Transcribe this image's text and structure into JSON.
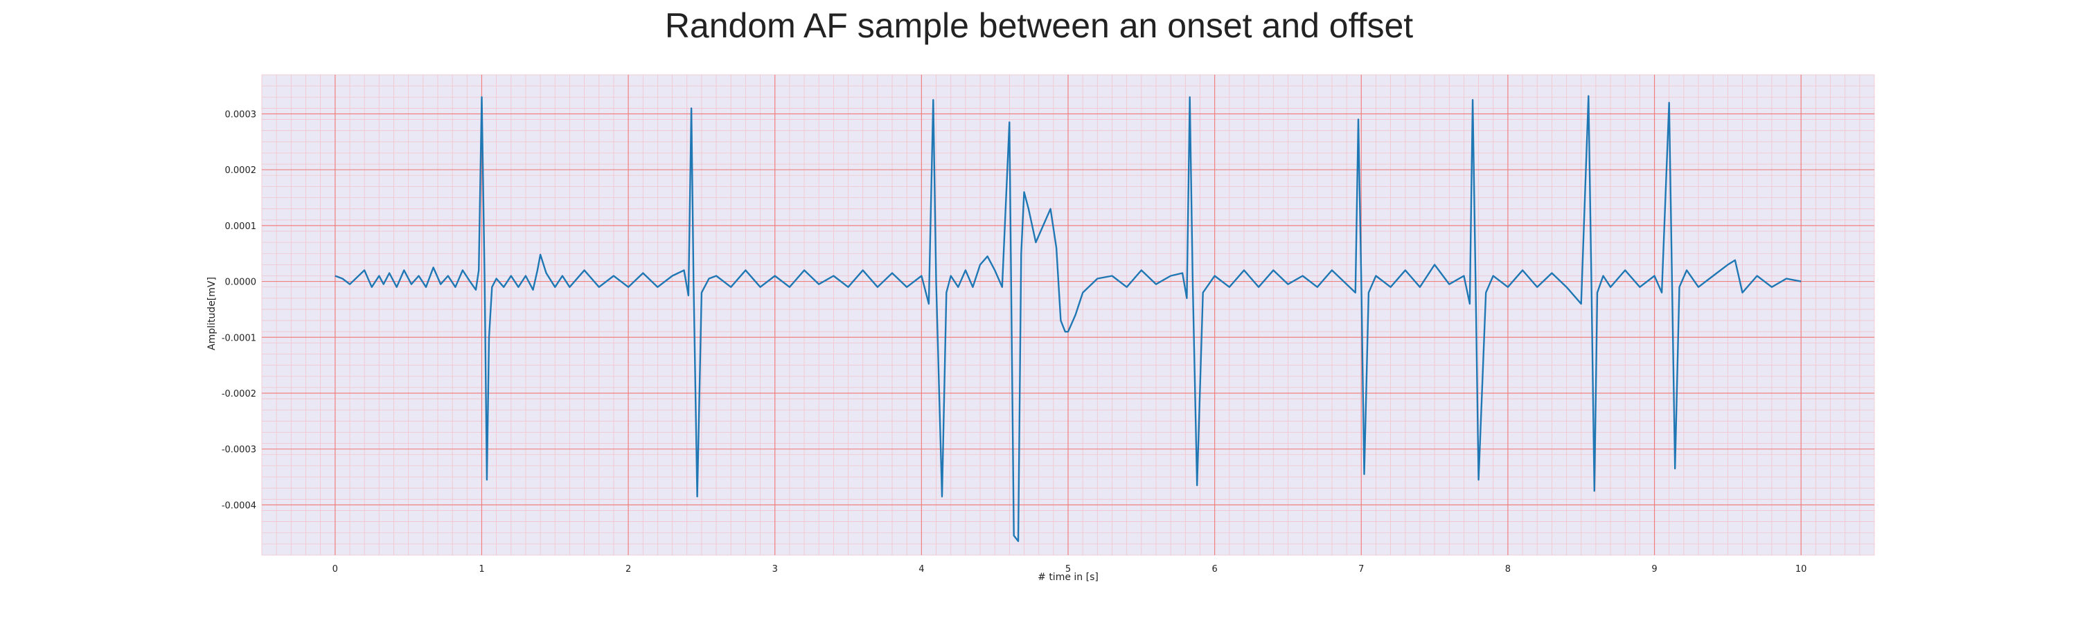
{
  "chart_data": {
    "type": "line",
    "title": "Random AF sample between an onset and offset",
    "xlabel": "# time in [s]",
    "ylabel": "Amplitude[mV]",
    "xlim": [
      -0.5,
      10.5
    ],
    "ylim": [
      -0.00049,
      0.00037
    ],
    "x_ticks": [
      0,
      1,
      2,
      3,
      4,
      5,
      6,
      7,
      8,
      9,
      10
    ],
    "x_tick_labels": [
      "0",
      "1",
      "2",
      "3",
      "4",
      "5",
      "6",
      "7",
      "8",
      "9",
      "10"
    ],
    "y_ticks": [
      0.0003,
      0.0002,
      0.0001,
      0.0,
      -0.0001,
      -0.0002,
      -0.0003,
      -0.0004
    ],
    "y_tick_labels": [
      "0.0003",
      "0.0002",
      "0.0001",
      "0.0000",
      "-0.0001",
      "-0.0002",
      "-0.0003",
      "-0.0004"
    ],
    "grid": {
      "major": true,
      "minor": true
    },
    "legend": "none",
    "colors": {
      "line": "#1f77b4",
      "background": "#eae8f4",
      "major_grid": "#f08080",
      "minor_grid": "#f2c4cc"
    },
    "series": [
      {
        "x": [
          0,
          0.05,
          0.1,
          0.2,
          0.25,
          0.3,
          0.33,
          0.37,
          0.42,
          0.47,
          0.52,
          0.57,
          0.62,
          0.67,
          0.72,
          0.77,
          0.82,
          0.87,
          0.92,
          0.96,
          0.98,
          1.0,
          1.02,
          1.035,
          1.05,
          1.07,
          1.1,
          1.15,
          1.2,
          1.25,
          1.3,
          1.35,
          1.38,
          1.4,
          1.44,
          1.5,
          1.55,
          1.6,
          1.7,
          1.8,
          1.9,
          2.0,
          2.1,
          2.2,
          2.3,
          2.38,
          2.41,
          2.43,
          2.445,
          2.47,
          2.5,
          2.55,
          2.6,
          2.7,
          2.8,
          2.9,
          3.0,
          3.1,
          3.2,
          3.3,
          3.4,
          3.5,
          3.6,
          3.7,
          3.8,
          3.9,
          4.0,
          4.05,
          4.08,
          4.1,
          4.14,
          4.17,
          4.2,
          4.25,
          4.3,
          4.35,
          4.4,
          4.45,
          4.5,
          4.55,
          4.6,
          4.63,
          4.66,
          4.68,
          4.7,
          4.73,
          4.78,
          4.83,
          4.88,
          4.92,
          4.95,
          4.98,
          5.0,
          5.05,
          5.1,
          5.2,
          5.3,
          5.4,
          5.5,
          5.6,
          5.7,
          5.78,
          5.81,
          5.83,
          5.85,
          5.88,
          5.92,
          6.0,
          6.1,
          6.2,
          6.3,
          6.4,
          6.5,
          6.6,
          6.7,
          6.8,
          6.9,
          6.96,
          6.98,
          7.0,
          7.02,
          7.05,
          7.1,
          7.2,
          7.3,
          7.4,
          7.5,
          7.6,
          7.7,
          7.74,
          7.76,
          7.78,
          7.8,
          7.85,
          7.9,
          8.0,
          8.1,
          8.2,
          8.3,
          8.4,
          8.5,
          8.55,
          8.57,
          8.59,
          8.61,
          8.65,
          8.7,
          8.8,
          8.9,
          9.0,
          9.05,
          9.1,
          9.12,
          9.14,
          9.17,
          9.22,
          9.3,
          9.4,
          9.5,
          9.55,
          9.6,
          9.7,
          9.8,
          9.9,
          10.0
        ],
        "values": [
          1e-05,
          5e-06,
          -5e-06,
          2e-05,
          -1e-05,
          1e-05,
          -5e-06,
          1.5e-05,
          -1e-05,
          2e-05,
          -5e-06,
          1e-05,
          -1e-05,
          2.5e-05,
          -5e-06,
          1e-05,
          -1e-05,
          2e-05,
          0.0,
          -1.5e-05,
          2e-05,
          0.00033,
          0.0,
          -0.000355,
          -0.0001,
          -1e-05,
          5e-06,
          -1e-05,
          1e-05,
          -1e-05,
          1e-05,
          -1.5e-05,
          2e-05,
          4.8e-05,
          1.5e-05,
          -1e-05,
          1e-05,
          -1e-05,
          2e-05,
          -1e-05,
          1e-05,
          -1e-05,
          1.5e-05,
          -1e-05,
          1e-05,
          2e-05,
          -2.5e-05,
          0.00031,
          0.0,
          -0.000385,
          -2e-05,
          5e-06,
          1e-05,
          -1e-05,
          2e-05,
          -1e-05,
          1e-05,
          -1e-05,
          2e-05,
          -5e-06,
          1e-05,
          -1e-05,
          2e-05,
          -1e-05,
          1.5e-05,
          -1e-05,
          1e-05,
          -4e-05,
          0.000325,
          0.0,
          -0.000385,
          -2e-05,
          1e-05,
          -1e-05,
          2e-05,
          -1e-05,
          3e-05,
          4.5e-05,
          2e-05,
          -1e-05,
          0.000285,
          -0.000455,
          -0.000465,
          5e-05,
          0.00016,
          0.00013,
          7e-05,
          0.0001,
          0.00013,
          6e-05,
          -7e-05,
          -9e-05,
          -9e-05,
          -6e-05,
          -2e-05,
          5e-06,
          1e-05,
          -1e-05,
          2e-05,
          -5e-06,
          1e-05,
          1.5e-05,
          -3e-05,
          0.00033,
          0.0,
          -0.000365,
          -2e-05,
          1e-05,
          -1e-05,
          2e-05,
          -1e-05,
          2e-05,
          -5e-06,
          1e-05,
          -1e-05,
          2e-05,
          -5e-06,
          -2e-05,
          0.00029,
          0.0,
          -0.000345,
          -2e-05,
          1e-05,
          -1e-05,
          2e-05,
          -1e-05,
          3e-05,
          -5e-06,
          1e-05,
          -4e-05,
          0.000325,
          0.0,
          -0.000355,
          -2e-05,
          1e-05,
          -1e-05,
          2e-05,
          -1e-05,
          1.5e-05,
          -1e-05,
          -4e-05,
          0.000332,
          0.0,
          -0.000375,
          -2e-05,
          1e-05,
          -1e-05,
          2e-05,
          -1e-05,
          1e-05,
          -2e-05,
          0.00032,
          0.0,
          -0.000335,
          -1e-05,
          2e-05,
          -1e-05,
          1e-05,
          3e-05,
          3.8e-05,
          -2e-05,
          1e-05,
          -1e-05,
          5e-06,
          0.0
        ]
      }
    ]
  }
}
